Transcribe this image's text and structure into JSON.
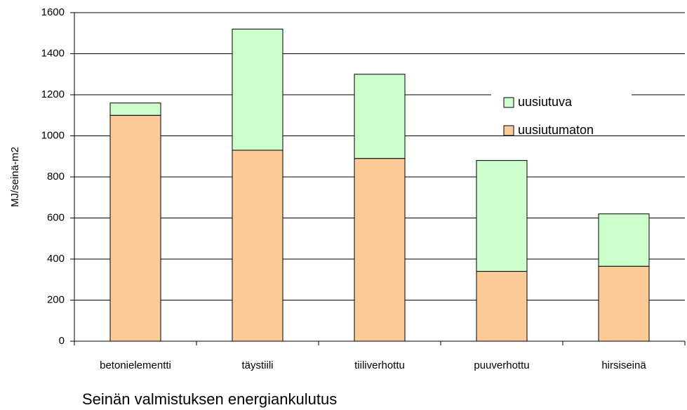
{
  "chart_data": {
    "type": "stacked_bar",
    "title": "Seinän valmistuksen energiankulutus",
    "y_label": "MJ/seinä-m2",
    "categories": [
      "betonielementti",
      "täystiili",
      "tiiliverhottu",
      "puuverhottu",
      "hirsiseinä"
    ],
    "series": [
      {
        "name": "uusiutumaton",
        "color": "#fccb98",
        "values": [
          1100,
          930,
          890,
          340,
          365
        ]
      },
      {
        "name": "uusiutuva",
        "color": "#ccffcc",
        "values": [
          60,
          590,
          410,
          540,
          255
        ]
      }
    ],
    "ylim": [
      0,
      1600
    ],
    "yticks": [
      0,
      200,
      400,
      600,
      800,
      1000,
      1200,
      1400,
      1600
    ],
    "grid": true,
    "legend": "right"
  }
}
